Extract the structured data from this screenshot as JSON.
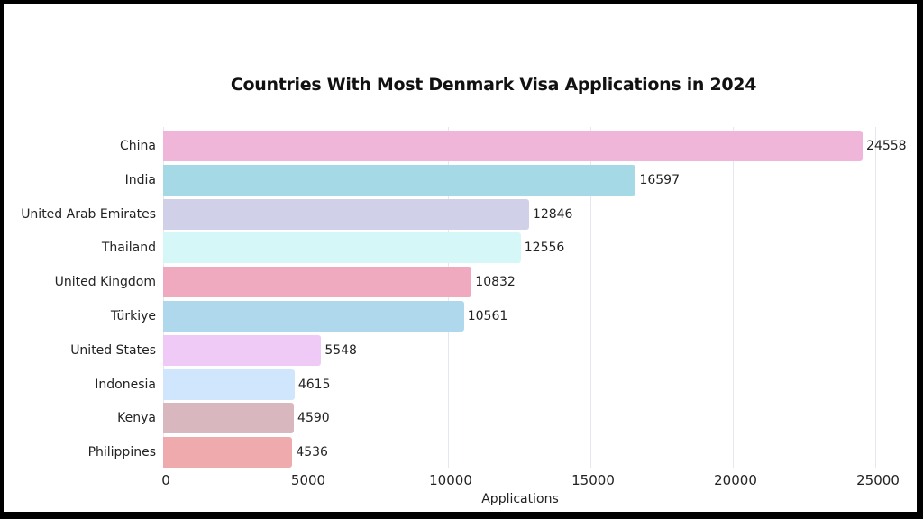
{
  "chart_data": {
    "type": "bar",
    "orientation": "horizontal",
    "title": "Countries With Most Denmark Visa Applications in 2024",
    "xlabel": "Applications",
    "ylabel": "",
    "xlim": [
      0,
      25000
    ],
    "xticks": [
      "0",
      "5000",
      "10000",
      "15000",
      "20000",
      "25000"
    ],
    "grid": true,
    "legend": null,
    "categories": [
      "China",
      "India",
      "United Arab Emirates",
      "Thailand",
      "United Kingdom",
      "Türkiye",
      "United States",
      "Indonesia",
      "Kenya",
      "Philippines"
    ],
    "values": [
      24558,
      16597,
      12846,
      12556,
      10832,
      10561,
      5548,
      4615,
      4590,
      4536
    ],
    "colors": [
      "#efb6da",
      "#a6d9e6",
      "#d0d0e8",
      "#d6f7f8",
      "#efaabf",
      "#b0d8ec",
      "#efcaf6",
      "#d0e6fc",
      "#d8b8be",
      "#efaaae"
    ]
  }
}
